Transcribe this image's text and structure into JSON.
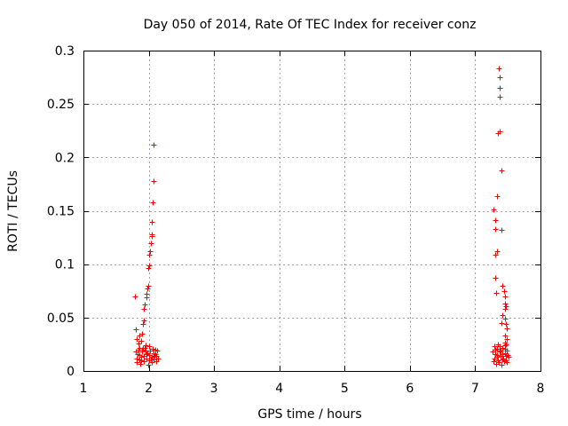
{
  "chart_data": {
    "type": "scatter",
    "title": "Day 050 of 2014, Rate Of TEC Index for receiver conz",
    "xlabel": "GPS time / hours",
    "ylabel": "ROTI / TECUs",
    "xlim": [
      1,
      8
    ],
    "ylim": [
      0,
      0.3
    ],
    "grid": true,
    "marker": "plus",
    "color": "#ff0000",
    "x_ticks": [
      1,
      2,
      3,
      4,
      5,
      6,
      7,
      8
    ],
    "x_tick_labels": [
      "1",
      "2",
      "3",
      "4",
      "5",
      "6",
      "7",
      "8"
    ],
    "y_ticks": [
      0,
      0.05,
      0.1,
      0.15,
      0.2,
      0.25,
      0.3
    ],
    "y_tick_labels": [
      "0",
      "0.05",
      "0.1",
      "0.15",
      "0.2",
      "0.25",
      "0.3"
    ],
    "series": [
      {
        "name": "ROTI",
        "points": [
          [
            2.07,
            0.212
          ],
          [
            2.08,
            0.178
          ],
          [
            2.06,
            0.158
          ],
          [
            2.05,
            0.14
          ],
          [
            2.04,
            0.128
          ],
          [
            2.05,
            0.126
          ],
          [
            2.03,
            0.12
          ],
          [
            2.02,
            0.112
          ],
          [
            2.01,
            0.109
          ],
          [
            2.0,
            0.099
          ],
          [
            1.99,
            0.096
          ],
          [
            1.99,
            0.08
          ],
          [
            1.98,
            0.077
          ],
          [
            1.97,
            0.072
          ],
          [
            1.96,
            0.069
          ],
          [
            1.94,
            0.062
          ],
          [
            1.93,
            0.058
          ],
          [
            1.92,
            0.047
          ],
          [
            1.91,
            0.044
          ],
          [
            1.79,
            0.07
          ],
          [
            1.9,
            0.035
          ],
          [
            1.85,
            0.033
          ],
          [
            1.8,
            0.039
          ],
          [
            1.82,
            0.03
          ],
          [
            1.88,
            0.028
          ],
          [
            1.84,
            0.026
          ],
          [
            1.86,
            0.022
          ],
          [
            1.8,
            0.018
          ],
          [
            1.82,
            0.012
          ],
          [
            1.84,
            0.02
          ],
          [
            1.86,
            0.015
          ],
          [
            1.88,
            0.01
          ],
          [
            1.9,
            0.018
          ],
          [
            1.92,
            0.014
          ],
          [
            1.94,
            0.022
          ],
          [
            1.96,
            0.012
          ],
          [
            1.98,
            0.017
          ],
          [
            2.0,
            0.01
          ],
          [
            2.02,
            0.019
          ],
          [
            2.04,
            0.013
          ],
          [
            2.06,
            0.021
          ],
          [
            2.08,
            0.011
          ],
          [
            2.1,
            0.016
          ],
          [
            2.12,
            0.014
          ],
          [
            2.14,
            0.012
          ],
          [
            1.81,
            0.008
          ],
          [
            1.87,
            0.007
          ],
          [
            1.93,
            0.009
          ],
          [
            1.99,
            0.006
          ],
          [
            2.05,
            0.008
          ],
          [
            2.11,
            0.009
          ],
          [
            1.83,
            0.016
          ],
          [
            1.89,
            0.013
          ],
          [
            1.95,
            0.019
          ],
          [
            2.01,
            0.015
          ],
          [
            2.07,
            0.017
          ],
          [
            2.13,
            0.019
          ],
          [
            1.85,
            0.011
          ],
          [
            1.91,
            0.022
          ],
          [
            1.97,
            0.016
          ],
          [
            2.03,
            0.012
          ],
          [
            2.09,
            0.014
          ],
          [
            1.95,
            0.024
          ],
          [
            1.9,
            0.02
          ],
          [
            2.0,
            0.023
          ],
          [
            2.1,
            0.02
          ],
          [
            7.36,
            0.283
          ],
          [
            7.38,
            0.275
          ],
          [
            7.37,
            0.265
          ],
          [
            7.38,
            0.257
          ],
          [
            7.35,
            0.223
          ],
          [
            7.37,
            0.224
          ],
          [
            7.4,
            0.188
          ],
          [
            7.33,
            0.164
          ],
          [
            7.28,
            0.151
          ],
          [
            7.3,
            0.141
          ],
          [
            7.31,
            0.133
          ],
          [
            7.4,
            0.132
          ],
          [
            7.33,
            0.112
          ],
          [
            7.31,
            0.109
          ],
          [
            7.3,
            0.087
          ],
          [
            7.41,
            0.08
          ],
          [
            7.44,
            0.075
          ],
          [
            7.45,
            0.07
          ],
          [
            7.32,
            0.073
          ],
          [
            7.46,
            0.063
          ],
          [
            7.47,
            0.061
          ],
          [
            7.45,
            0.058
          ],
          [
            7.42,
            0.052
          ],
          [
            7.46,
            0.049
          ],
          [
            7.4,
            0.045
          ],
          [
            7.47,
            0.044
          ],
          [
            7.48,
            0.04
          ],
          [
            7.46,
            0.033
          ],
          [
            7.49,
            0.03
          ],
          [
            7.45,
            0.027
          ],
          [
            7.47,
            0.025
          ],
          [
            7.27,
            0.018
          ],
          [
            7.29,
            0.012
          ],
          [
            7.31,
            0.02
          ],
          [
            7.33,
            0.015
          ],
          [
            7.35,
            0.01
          ],
          [
            7.37,
            0.018
          ],
          [
            7.39,
            0.014
          ],
          [
            7.41,
            0.022
          ],
          [
            7.43,
            0.012
          ],
          [
            7.45,
            0.017
          ],
          [
            7.47,
            0.01
          ],
          [
            7.49,
            0.019
          ],
          [
            7.51,
            0.013
          ],
          [
            7.28,
            0.009
          ],
          [
            7.32,
            0.007
          ],
          [
            7.36,
            0.008
          ],
          [
            7.4,
            0.006
          ],
          [
            7.44,
            0.009
          ],
          [
            7.48,
            0.008
          ],
          [
            7.3,
            0.016
          ],
          [
            7.34,
            0.021
          ],
          [
            7.38,
            0.023
          ],
          [
            7.42,
            0.016
          ],
          [
            7.46,
            0.021
          ],
          [
            7.5,
            0.015
          ],
          [
            7.29,
            0.023
          ],
          [
            7.35,
            0.025
          ],
          [
            7.41,
            0.011
          ],
          [
            7.47,
            0.014
          ],
          [
            7.33,
            0.013
          ],
          [
            7.39,
            0.019
          ],
          [
            7.45,
            0.024
          ]
        ]
      }
    ]
  }
}
